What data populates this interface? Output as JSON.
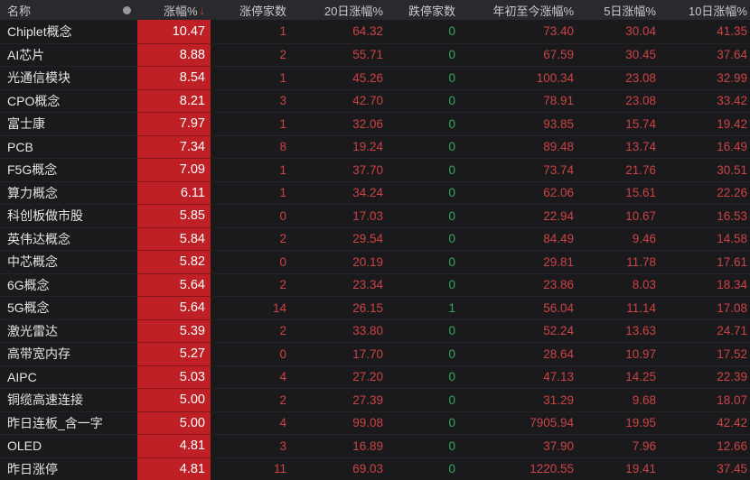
{
  "header": {
    "name": "名称",
    "dot_icon": "market-status-dot",
    "pct": "涨幅%",
    "sort_arrow": "↓",
    "limit_up": "涨停家数",
    "d20": "20日涨幅%",
    "limit_down": "跌停家数",
    "ytd": "年初至今涨幅%",
    "d5": "5日涨幅%",
    "d10": "10日涨幅%"
  },
  "colors": {
    "pct_cell_bg": "#bf2026",
    "up_text": "#cc4343",
    "down_text": "#2fa95c",
    "sort_arrow": "#e23b3b",
    "header_bg": "#29292e",
    "table_bg": "#1a1a1d"
  },
  "rows": [
    {
      "name": "Chiplet概念",
      "pct": "10.47",
      "limit_up": "1",
      "d20": "64.32",
      "limit_down": "0",
      "ytd": "73.40",
      "d5": "30.04",
      "d10": "41.35"
    },
    {
      "name": "AI芯片",
      "pct": "8.88",
      "limit_up": "2",
      "d20": "55.71",
      "limit_down": "0",
      "ytd": "67.59",
      "d5": "30.45",
      "d10": "37.64"
    },
    {
      "name": "光通信模块",
      "pct": "8.54",
      "limit_up": "1",
      "d20": "45.26",
      "limit_down": "0",
      "ytd": "100.34",
      "d5": "23.08",
      "d10": "32.99"
    },
    {
      "name": "CPO概念",
      "pct": "8.21",
      "limit_up": "3",
      "d20": "42.70",
      "limit_down": "0",
      "ytd": "78.91",
      "d5": "23.08",
      "d10": "33.42"
    },
    {
      "name": "富士康",
      "pct": "7.97",
      "limit_up": "1",
      "d20": "32.06",
      "limit_down": "0",
      "ytd": "93.85",
      "d5": "15.74",
      "d10": "19.42"
    },
    {
      "name": "PCB",
      "pct": "7.34",
      "limit_up": "8",
      "d20": "19.24",
      "limit_down": "0",
      "ytd": "89.48",
      "d5": "13.74",
      "d10": "16.49"
    },
    {
      "name": "F5G概念",
      "pct": "7.09",
      "limit_up": "1",
      "d20": "37.70",
      "limit_down": "0",
      "ytd": "73.74",
      "d5": "21.76",
      "d10": "30.51"
    },
    {
      "name": "算力概念",
      "pct": "6.11",
      "limit_up": "1",
      "d20": "34.24",
      "limit_down": "0",
      "ytd": "62.06",
      "d5": "15.61",
      "d10": "22.26"
    },
    {
      "name": "科创板做市股",
      "pct": "5.85",
      "limit_up": "0",
      "d20": "17.03",
      "limit_down": "0",
      "ytd": "22.94",
      "d5": "10.67",
      "d10": "16.53"
    },
    {
      "name": "英伟达概念",
      "pct": "5.84",
      "limit_up": "2",
      "d20": "29.54",
      "limit_down": "0",
      "ytd": "84.49",
      "d5": "9.46",
      "d10": "14.58"
    },
    {
      "name": "中芯概念",
      "pct": "5.82",
      "limit_up": "0",
      "d20": "20.19",
      "limit_down": "0",
      "ytd": "29.81",
      "d5": "11.78",
      "d10": "17.61"
    },
    {
      "name": "6G概念",
      "pct": "5.64",
      "limit_up": "2",
      "d20": "23.34",
      "limit_down": "0",
      "ytd": "23.86",
      "d5": "8.03",
      "d10": "18.34"
    },
    {
      "name": "5G概念",
      "pct": "5.64",
      "limit_up": "14",
      "d20": "26.15",
      "limit_down": "1",
      "ytd": "56.04",
      "d5": "11.14",
      "d10": "17.08"
    },
    {
      "name": "激光雷达",
      "pct": "5.39",
      "limit_up": "2",
      "d20": "33.80",
      "limit_down": "0",
      "ytd": "52.24",
      "d5": "13.63",
      "d10": "24.71"
    },
    {
      "name": "高带宽内存",
      "pct": "5.27",
      "limit_up": "0",
      "d20": "17.70",
      "limit_down": "0",
      "ytd": "28.64",
      "d5": "10.97",
      "d10": "17.52"
    },
    {
      "name": "AIPC",
      "pct": "5.03",
      "limit_up": "4",
      "d20": "27.20",
      "limit_down": "0",
      "ytd": "47.13",
      "d5": "14.25",
      "d10": "22.39"
    },
    {
      "name": "铜缆高速连接",
      "pct": "5.00",
      "limit_up": "2",
      "d20": "27.39",
      "limit_down": "0",
      "ytd": "31.29",
      "d5": "9.68",
      "d10": "18.07"
    },
    {
      "name": "昨日连板_含一字",
      "pct": "5.00",
      "limit_up": "4",
      "d20": "99.08",
      "limit_down": "0",
      "ytd": "7905.94",
      "d5": "19.95",
      "d10": "42.42"
    },
    {
      "name": "OLED",
      "pct": "4.81",
      "limit_up": "3",
      "d20": "16.89",
      "limit_down": "0",
      "ytd": "37.90",
      "d5": "7.96",
      "d10": "12.66"
    },
    {
      "name": "昨日涨停",
      "pct": "4.81",
      "limit_up": "11",
      "d20": "69.03",
      "limit_down": "0",
      "ytd": "1220.55",
      "d5": "19.41",
      "d10": "37.45"
    }
  ]
}
